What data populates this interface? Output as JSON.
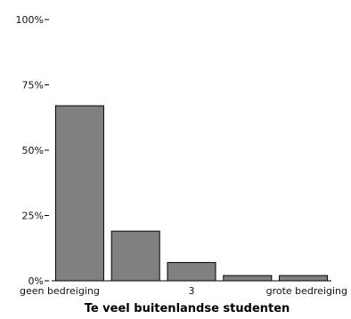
{
  "chart_data": {
    "type": "bar",
    "categories": [
      "geen bedreiging",
      "",
      "3",
      "",
      "grote bedreiging"
    ],
    "values": [
      67,
      19,
      7,
      2,
      2
    ],
    "xlabel": "Te veel buitenlandse studenten",
    "ylabel": "",
    "ylim": [
      0,
      100
    ],
    "yticks": [
      "0%",
      "25%",
      "50%",
      "75%",
      "100%"
    ],
    "ytick_values": [
      0,
      25,
      50,
      75,
      100
    ],
    "grid": false,
    "bar_color": "#808080",
    "bar_edge_color": "#000000"
  }
}
